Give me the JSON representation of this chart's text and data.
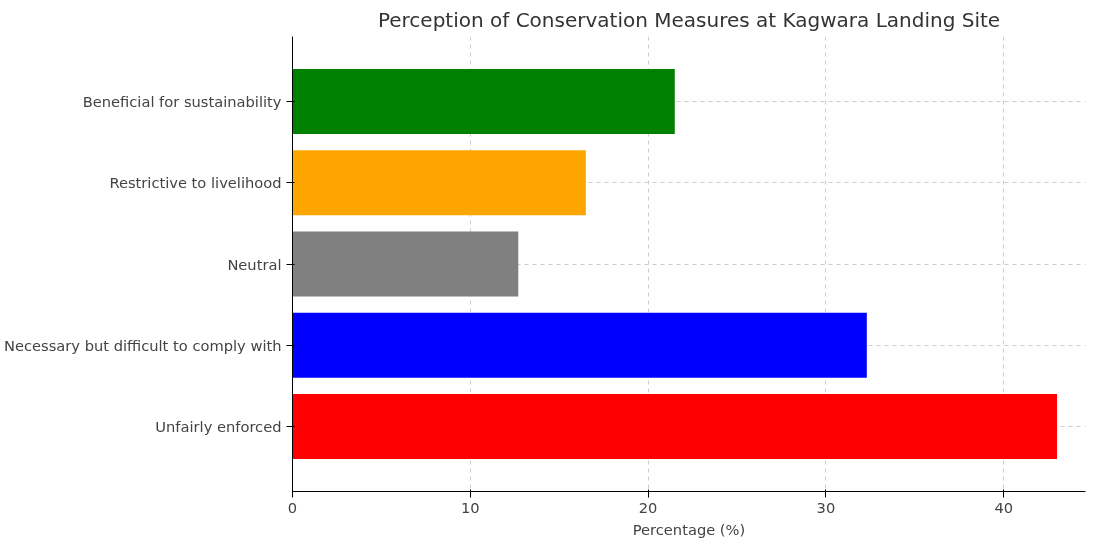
{
  "chart_data": {
    "type": "bar",
    "orientation": "horizontal",
    "title": "Perception of Conservation Measures at Kagwara Landing Site",
    "xlabel": "Percentage (%)",
    "categories": [
      "Beneficial for sustainability",
      "Restrictive to livelihood",
      "Neutral",
      "Necessary but difficult to comply with",
      "Unfairly enforced"
    ],
    "values": [
      21.5,
      16.5,
      12.7,
      32.3,
      43
    ],
    "colors": [
      "#008000",
      "#ffa500",
      "#808080",
      "#0000ff",
      "#ff0000"
    ],
    "xlim": [
      0,
      44.6
    ],
    "xticks": [
      0,
      10,
      20,
      30,
      40
    ],
    "grid": true,
    "line_style": "dashed"
  }
}
